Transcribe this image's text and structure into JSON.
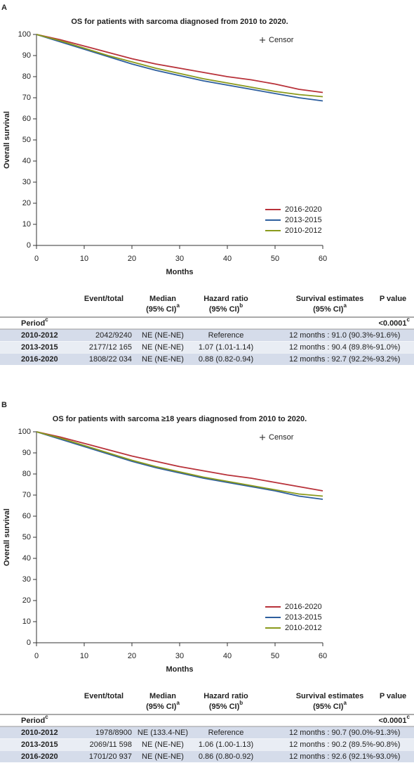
{
  "chart_data": [
    {
      "type": "line",
      "panel_label": "A",
      "title": "OS for patients with sarcoma diagnosed from 2010 to 2020.",
      "x_label": "Months",
      "y_label": "Overall survival",
      "censor_label": "Censor",
      "x": [
        0,
        5,
        10,
        15,
        20,
        25,
        30,
        35,
        40,
        45,
        50,
        55,
        60
      ],
      "series": [
        {
          "name": "2016-2020",
          "color": "#b8323a",
          "values": [
            100,
            97.5,
            94.5,
            91.5,
            88.5,
            86,
            84,
            82,
            80,
            78.5,
            76.5,
            74,
            72.5
          ]
        },
        {
          "name": "2013-2015",
          "color": "#2e5f9e",
          "values": [
            100,
            96.5,
            93,
            89.5,
            86,
            83,
            80.5,
            78,
            76,
            74,
            72,
            70,
            68.5
          ]
        },
        {
          "name": "2010-2012",
          "color": "#8a9a1c",
          "values": [
            100,
            97,
            93.5,
            90,
            87,
            84,
            81.5,
            79,
            77,
            75,
            73,
            71.5,
            70.5
          ]
        }
      ],
      "xlim": [
        0,
        60
      ],
      "ylim": [
        0,
        100
      ],
      "xticks": [
        0,
        10,
        20,
        30,
        40,
        50,
        60
      ],
      "yticks": [
        0,
        10,
        20,
        30,
        40,
        50,
        60,
        70,
        80,
        90,
        100
      ],
      "legend": "lower right"
    },
    {
      "type": "line",
      "panel_label": "B",
      "title": "OS for patients with sarcoma ≥18 years diagnosed from 2010 to 2020.",
      "x_label": "Months",
      "y_label": "Overall survival",
      "censor_label": "Censor",
      "x": [
        0,
        5,
        10,
        15,
        20,
        25,
        30,
        35,
        40,
        45,
        50,
        55,
        60
      ],
      "series": [
        {
          "name": "2016-2020",
          "color": "#b8323a",
          "values": [
            100,
            97.5,
            94.5,
            91.5,
            88.5,
            86,
            83.5,
            81.5,
            79.5,
            78,
            76,
            74,
            72
          ]
        },
        {
          "name": "2013-2015",
          "color": "#2e5f9e",
          "values": [
            100,
            96.5,
            93,
            89.5,
            86,
            83,
            80.5,
            78,
            76,
            74,
            72,
            69.5,
            68
          ]
        },
        {
          "name": "2010-2012",
          "color": "#8a9a1c",
          "values": [
            100,
            97,
            93.5,
            90,
            86.5,
            83.5,
            81,
            78.5,
            76.5,
            74.5,
            72.5,
            70.5,
            69.5
          ]
        }
      ],
      "xlim": [
        0,
        60
      ],
      "ylim": [
        0,
        100
      ],
      "xticks": [
        0,
        10,
        20,
        30,
        40,
        50,
        60
      ],
      "yticks": [
        0,
        10,
        20,
        30,
        40,
        50,
        60,
        70,
        80,
        90,
        100
      ],
      "legend": "lower right"
    }
  ],
  "tables": [
    {
      "header": [
        {
          "lines": [
            "Event/total"
          ]
        },
        {
          "lines": [
            "Median",
            "(95% CI)"
          ],
          "sup": "a"
        },
        {
          "lines": [
            "Hazard ratio",
            "(95% CI)"
          ],
          "sup": "b"
        },
        {
          "lines": [
            "Survival estimates",
            "(95% CI)"
          ],
          "sup": "a"
        },
        {
          "lines": [
            "P value"
          ]
        }
      ],
      "period": {
        "label": "Period",
        "sup": "c",
        "p_value": "<0.0001",
        "p_sup": "c"
      },
      "rows": [
        [
          "2010-2012",
          "2042/9240",
          "NE (NE-NE)",
          "Reference",
          "12 months : 91.0 (90.3%-91.6%)"
        ],
        [
          "2013-2015",
          "2177/12 165",
          "NE (NE-NE)",
          "1.07 (1.01-1.14)",
          "12 months : 90.4 (89.8%-91.0%)"
        ],
        [
          "2016-2020",
          "1808/22 034",
          "NE (NE-NE)",
          "0.88 (0.82-0.94)",
          "12 months : 92.7 (92.2%-93.2%)"
        ]
      ]
    },
    {
      "header": [
        {
          "lines": [
            "Event/total"
          ]
        },
        {
          "lines": [
            "Median",
            "(95% CI)"
          ],
          "sup": "a"
        },
        {
          "lines": [
            "Hazard ratio",
            "(95% CI)"
          ],
          "sup": "b"
        },
        {
          "lines": [
            "Survival estimates",
            "(95% CI)"
          ],
          "sup": "a"
        },
        {
          "lines": [
            "P value"
          ]
        }
      ],
      "period": {
        "label": "Period",
        "sup": "c",
        "p_value": "<0.0001",
        "p_sup": "c"
      },
      "rows": [
        [
          "2010-2012",
          "1978/8900",
          "NE (133.4-NE)",
          "Reference",
          "12 months : 90.7 (90.0%-91.3%)"
        ],
        [
          "2013-2015",
          "2069/11 598",
          "NE (NE-NE)",
          "1.06 (1.00-1.13)",
          "12 months : 90.2 (89.5%-90.8%)"
        ],
        [
          "2016-2020",
          "1701/20 937",
          "NE (NE-NE)",
          "0.86 (0.80-0.92)",
          "12 months : 92.6 (92.1%-93.0%)"
        ]
      ]
    }
  ]
}
